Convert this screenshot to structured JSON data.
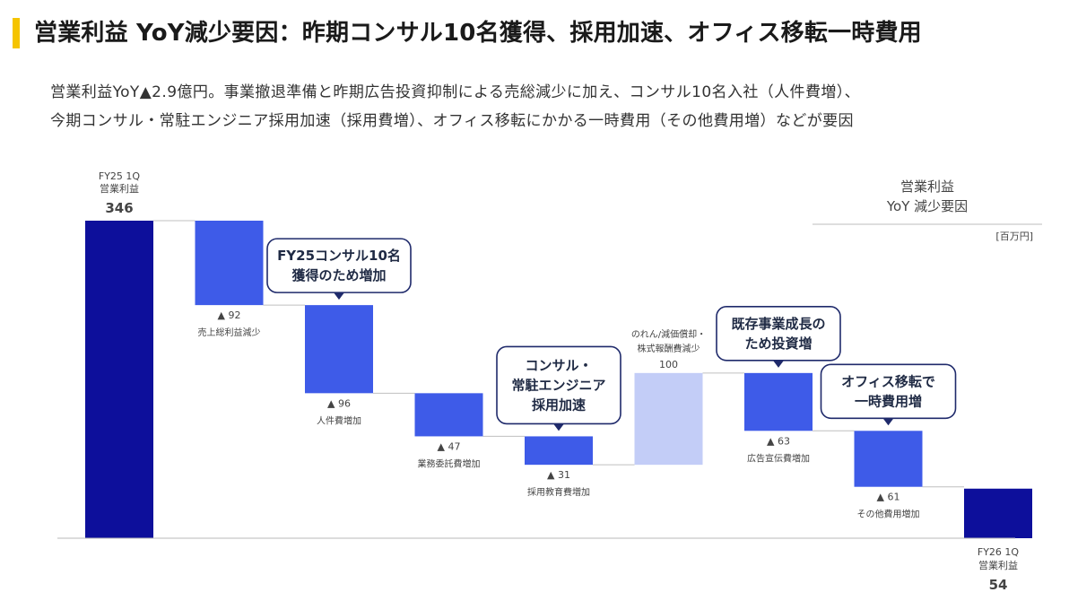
{
  "header": {
    "title": "営業利益 YoY減少要因：昨期コンサル10名獲得、採用加速、オフィス移転一時費用",
    "subtitle_line1": "営業利益YoY▲2.9億円。事業撤退準備と昨期広告投資抑制による売総減少に加え、コンサル10名入社（人件費増）、",
    "subtitle_line2": "今期コンサル・常駐エンジニア採用加速（採用費増）、オフィス移転にかかる一時費用（その他費用増）などが要因"
  },
  "legend": {
    "line1": "営業利益",
    "line2": "YoY 減少要因",
    "unit": "[百万円]"
  },
  "colors": {
    "total": "#0d0f9b",
    "decrease": "#3e5be8",
    "increase": "#c3cdf7",
    "accent": "#f5c400",
    "callout_border": "#1f2a6b"
  },
  "chart_data": {
    "type": "bar",
    "subtype": "waterfall",
    "unit": "百万円",
    "steps": [
      {
        "name": "start",
        "label_lines": [
          "FY25 1Q",
          "営業利益"
        ],
        "value": 346,
        "value_text": "346",
        "kind": "total"
      },
      {
        "name": "gross-profit",
        "label_lines": [
          "売上総利益減少"
        ],
        "value": -92,
        "value_text": "▲ 92",
        "kind": "decrease"
      },
      {
        "name": "personnel",
        "label_lines": [
          "人件費増加"
        ],
        "value": -96,
        "value_text": "▲ 96",
        "kind": "decrease"
      },
      {
        "name": "outsourcing",
        "label_lines": [
          "業務委託費増加"
        ],
        "value": -47,
        "value_text": "▲ 47",
        "kind": "decrease"
      },
      {
        "name": "recruiting",
        "label_lines": [
          "採用教育費増加"
        ],
        "value": -31,
        "value_text": "▲ 31",
        "kind": "decrease"
      },
      {
        "name": "goodwill",
        "label_lines": [
          "のれん/減価償却・",
          "株式報酬費減少"
        ],
        "value": 100,
        "value_text": "100",
        "kind": "increase"
      },
      {
        "name": "advertising",
        "label_lines": [
          "広告宣伝費増加"
        ],
        "value": -63,
        "value_text": "▲ 63",
        "kind": "decrease"
      },
      {
        "name": "other",
        "label_lines": [
          "その他費用増加"
        ],
        "value": -61,
        "value_text": "▲ 61",
        "kind": "decrease"
      },
      {
        "name": "end",
        "label_lines": [
          "FY26 1Q",
          "営業利益"
        ],
        "value": 54,
        "value_text": "54",
        "kind": "total"
      }
    ],
    "callouts": [
      {
        "step": 2,
        "lines": [
          "FY25コンサル10名",
          "獲得のため増加"
        ]
      },
      {
        "step": 4,
        "lines": [
          "コンサル・",
          "常駐エンジニア",
          "採用加速"
        ]
      },
      {
        "step": 6,
        "lines": [
          "既存事業成長の",
          "ため投資増"
        ]
      },
      {
        "step": 7,
        "lines": [
          "オフィス移転で",
          "一時費用増"
        ]
      }
    ]
  }
}
